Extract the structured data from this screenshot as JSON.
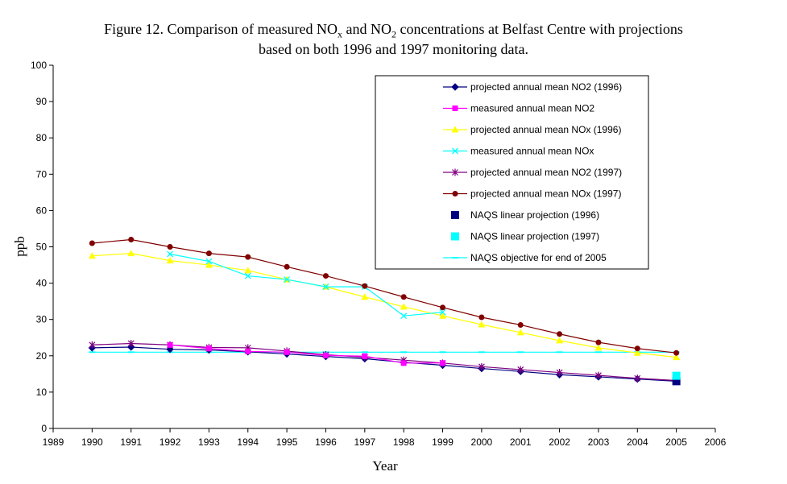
{
  "title": {
    "line1": "Figure 12. Comparison of measured NOx and NO2 concentrations at Belfast Centre with projections",
    "line2": "based on both 1996 and 1997 monitoring data."
  },
  "chart_data": {
    "type": "line",
    "xlabel": "Year",
    "ylabel": "ppb",
    "xlim": [
      1989,
      2006
    ],
    "ylim": [
      0,
      100
    ],
    "x_ticks": [
      1989,
      1990,
      1991,
      1992,
      1993,
      1994,
      1995,
      1996,
      1997,
      1998,
      1999,
      2000,
      2001,
      2002,
      2003,
      2004,
      2005,
      2006
    ],
    "y_ticks": [
      0,
      10,
      20,
      30,
      40,
      50,
      60,
      70,
      80,
      90,
      100
    ],
    "grid": false,
    "legend_position": "top-right",
    "series": [
      {
        "name": "projected annual mean NO2 (1996)",
        "color": "#000080",
        "marker": "diamond",
        "line": true,
        "x": [
          1990,
          1991,
          1992,
          1993,
          1994,
          1995,
          1996,
          1997,
          1998,
          1999,
          2000,
          2001,
          2002,
          2003,
          2004,
          2005
        ],
        "y": [
          22.2,
          22.4,
          21.8,
          21.6,
          21.1,
          20.5,
          19.8,
          19.2,
          18.2,
          17.4,
          16.5,
          15.7,
          14.8,
          14.2,
          13.6,
          13.0
        ]
      },
      {
        "name": "measured annual mean NO2",
        "color": "#FF00FF",
        "marker": "square",
        "line": true,
        "x": [
          1992,
          1993,
          1994,
          1995,
          1996,
          1997,
          1998,
          1999
        ],
        "y": [
          23.0,
          22.0,
          21.2,
          21.0,
          20.1,
          19.9,
          18.0,
          18.0
        ]
      },
      {
        "name": "projected annual mean NOx (1996)",
        "color": "#FFFF00",
        "marker": "triangle",
        "line": true,
        "x": [
          1990,
          1991,
          1992,
          1993,
          1994,
          1995,
          1996,
          1997,
          1998,
          1999,
          2000,
          2001,
          2002,
          2003,
          2004,
          2005
        ],
        "y": [
          47.5,
          48.2,
          46.2,
          45.0,
          43.5,
          41.0,
          39.0,
          36.2,
          33.5,
          31.0,
          28.6,
          26.4,
          24.2,
          22.2,
          20.8,
          19.6
        ]
      },
      {
        "name": "measured annual mean NOx",
        "color": "#00FFFF",
        "marker": "x",
        "line": true,
        "x": [
          1992,
          1993,
          1994,
          1995,
          1996,
          1997,
          1998,
          1999
        ],
        "y": [
          48.0,
          46.0,
          42.0,
          41.0,
          39.0,
          39.0,
          31.0,
          32.0
        ]
      },
      {
        "name": "projected annual mean NO2 (1997)",
        "color": "#800080",
        "marker": "asterisk",
        "line": true,
        "x": [
          1990,
          1991,
          1992,
          1993,
          1994,
          1995,
          1996,
          1997,
          1998,
          1999,
          2000,
          2001,
          2002,
          2003,
          2004,
          2005
        ],
        "y": [
          23.0,
          23.4,
          23.0,
          22.3,
          22.2,
          21.3,
          20.3,
          19.6,
          18.8,
          18.0,
          17.0,
          16.2,
          15.4,
          14.6,
          13.8,
          13.2
        ]
      },
      {
        "name": "projected annual mean NOx (1997)",
        "color": "#800000",
        "marker": "circle",
        "line": true,
        "x": [
          1990,
          1991,
          1992,
          1993,
          1994,
          1995,
          1996,
          1997,
          1998,
          1999,
          2000,
          2001,
          2002,
          2003,
          2004,
          2005
        ],
        "y": [
          51.0,
          52.0,
          50.0,
          48.2,
          47.2,
          44.5,
          42.0,
          39.2,
          36.2,
          33.3,
          30.6,
          28.5,
          26.0,
          23.7,
          22.0,
          20.8
        ]
      },
      {
        "name": "NAQS linear projection (1996)",
        "color": "#000080",
        "marker": "bigsquare",
        "line": false,
        "x": [
          2005
        ],
        "y": [
          13.0
        ]
      },
      {
        "name": "NAQS linear projection (1997)",
        "color": "#00FFFF",
        "marker": "bigsquare",
        "line": false,
        "x": [
          2005
        ],
        "y": [
          14.5
        ]
      },
      {
        "name": "NAQS objective for end of 2005",
        "color": "#00FFFF",
        "marker": "dash",
        "line": true,
        "x": [
          1990,
          1991,
          1992,
          1993,
          1994,
          1995,
          1996,
          1997,
          1998,
          1999,
          2000,
          2001,
          2002,
          2003,
          2004,
          2005
        ],
        "y": [
          21,
          21,
          21,
          21,
          21,
          21,
          21,
          21,
          21,
          21,
          21,
          21,
          21,
          21,
          21,
          21
        ]
      }
    ]
  }
}
